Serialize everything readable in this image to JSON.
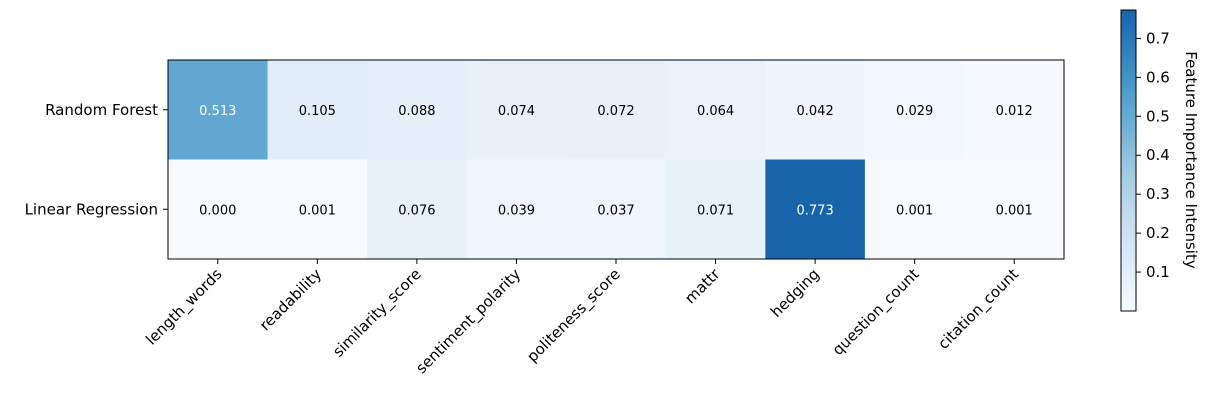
{
  "chart_data": {
    "type": "heatmap",
    "title": "",
    "xlabel": "",
    "ylabel": "",
    "columns": [
      "length_words",
      "readability",
      "similarity_score",
      "sentiment_polarity",
      "politeness_score",
      "mattr",
      "hedging",
      "question_count",
      "citation_count"
    ],
    "rows": [
      "Random Forest",
      "Linear Regression"
    ],
    "values": [
      [
        0.513,
        0.105,
        0.088,
        0.074,
        0.072,
        0.064,
        0.042,
        0.029,
        0.012
      ],
      [
        0.0,
        0.001,
        0.076,
        0.039,
        0.037,
        0.071,
        0.773,
        0.001,
        0.001
      ]
    ],
    "value_labels": [
      [
        "0.513",
        "0.105",
        "0.088",
        "0.074",
        "0.072",
        "0.064",
        "0.042",
        "0.029",
        "0.012"
      ],
      [
        "0.000",
        "0.001",
        "0.076",
        "0.039",
        "0.037",
        "0.071",
        "0.773",
        "0.001",
        "0.001"
      ]
    ],
    "colormap": "Blues",
    "vmin": 0.0,
    "vmax": 0.773,
    "colorbar": {
      "label": "Feature Importance Intensity",
      "ticks": [
        0.1,
        0.2,
        0.3,
        0.4,
        0.5,
        0.6,
        0.7
      ],
      "tick_labels": [
        "0.1",
        "0.2",
        "0.3",
        "0.4",
        "0.5",
        "0.6",
        "0.7"
      ],
      "placement": "right"
    },
    "grid": false
  }
}
